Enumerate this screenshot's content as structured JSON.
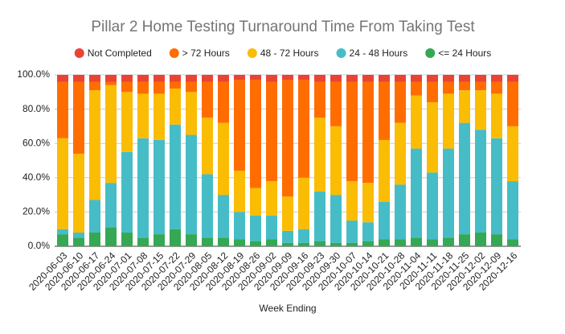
{
  "chart_data": {
    "type": "stacked_bar_100",
    "title": "Pillar 2 Home Testing Turnaround Time From Taking Test",
    "x_label": "Week Ending",
    "categories": [
      "2020-06-03",
      "2020-06-10",
      "2020-06-17",
      "2020-06-24",
      "2020-07-01",
      "2020-07-08",
      "2020-07-15",
      "2020-07-22",
      "2020-07-29",
      "2020-08-05",
      "2020-08-12",
      "2020-08-19",
      "2020-08-26",
      "2020-09-02",
      "2020-09-09",
      "2020-09-16",
      "2020-09-23",
      "2020-09-30",
      "2020-10-07",
      "2020-10-14",
      "2020-10-21",
      "2020-10-28",
      "2020-11-04",
      "2020-11-11",
      "2020-11-18",
      "2020-11-25",
      "2020-12-02",
      "2020-12-09",
      "2020-12-16"
    ],
    "series": [
      {
        "name": "Not Completed",
        "color": "#ea4335",
        "values": [
          4,
          4,
          4,
          4,
          4,
          4,
          4,
          4,
          4,
          4,
          4,
          3,
          3,
          4,
          3,
          3,
          4,
          4,
          4,
          4,
          4,
          4,
          4,
          4,
          4,
          4,
          4,
          4,
          4
        ]
      },
      {
        "name": "> 72 Hours",
        "color": "#ff6d01",
        "values": [
          33,
          42,
          5,
          2,
          6,
          7,
          7,
          4,
          6,
          21,
          24,
          53,
          63,
          58,
          68,
          57,
          21,
          26,
          58,
          59,
          34,
          24,
          8,
          12,
          7,
          5,
          5,
          7,
          26
        ]
      },
      {
        "name": "48 - 72 Hours",
        "color": "#fbbc04",
        "values": [
          53,
          46,
          64,
          57,
          35,
          26,
          27,
          21,
          25,
          33,
          42,
          24,
          16,
          20,
          20,
          30,
          43,
          40,
          23,
          23,
          36,
          36,
          31,
          41,
          32,
          19,
          23,
          26,
          32
        ]
      },
      {
        "name": "24 - 48 Hours",
        "color": "#46bdc6",
        "values": [
          3,
          3,
          19,
          26,
          47,
          58,
          55,
          61,
          58,
          37,
          25,
          16,
          15,
          14,
          7,
          8,
          29,
          28,
          13,
          11,
          22,
          32,
          52,
          39,
          52,
          65,
          60,
          56,
          34
        ]
      },
      {
        "name": "<= 24 Hours",
        "color": "#34a853",
        "values": [
          7,
          5,
          8,
          11,
          8,
          5,
          7,
          10,
          7,
          5,
          5,
          4,
          3,
          4,
          2,
          2,
          3,
          2,
          2,
          3,
          4,
          4,
          5,
          4,
          5,
          7,
          8,
          7,
          4
        ]
      }
    ],
    "ylim": [
      0,
      100
    ],
    "yticks": [
      {
        "value": 0,
        "label": "0.0%"
      },
      {
        "value": 20,
        "label": "20.0%"
      },
      {
        "value": 40,
        "label": "40.0%"
      },
      {
        "value": 60,
        "label": "60.0%"
      },
      {
        "value": 80,
        "label": "80.0%"
      },
      {
        "value": 100,
        "label": "100.0%"
      }
    ],
    "grid": true,
    "legend": "top"
  }
}
